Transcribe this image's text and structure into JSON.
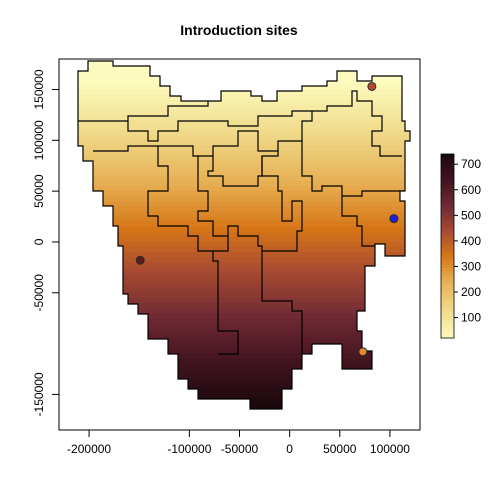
{
  "chart_data": {
    "type": "heatmap",
    "title": "Introduction sites",
    "xlabel": "",
    "ylabel": "",
    "xlim": [
      -230000,
      130000
    ],
    "ylim": [
      -185000,
      180000
    ],
    "x_ticks": [
      -200000,
      -100000,
      -50000,
      0,
      50000,
      100000
    ],
    "x_tick_labels": [
      "-200000",
      "-100000",
      "-50000",
      "0",
      "50000",
      "100000"
    ],
    "y_ticks": [
      -150000,
      -50000,
      0,
      50000,
      100000,
      150000
    ],
    "y_tick_labels": [
      "-150000",
      "-50000",
      "0",
      "50000",
      "100000",
      "150000"
    ],
    "grid": false,
    "legend": {
      "placement": "right",
      "range": [
        20,
        740
      ],
      "ticks": [
        100,
        200,
        300,
        400,
        500,
        600,
        700
      ],
      "tick_labels": [
        "100",
        "200",
        "300",
        "400",
        "500",
        "600",
        "700"
      ]
    },
    "value_gradient": {
      "direction": "increasing southward",
      "north_value": 20,
      "south_value": 740
    },
    "colors": {
      "low": "#FCF7B6",
      "mid": "#D9801F",
      "high": "#220A0E"
    },
    "points": [
      {
        "x": 82000,
        "y": 153000,
        "color": "#B8472B"
      },
      {
        "x": 104000,
        "y": 23000,
        "color": "#1F1FE0"
      },
      {
        "x": -149000,
        "y": -18000,
        "color": "#5C1B1B"
      },
      {
        "x": 73000,
        "y": -108000,
        "color": "#E58A2A"
      }
    ]
  }
}
